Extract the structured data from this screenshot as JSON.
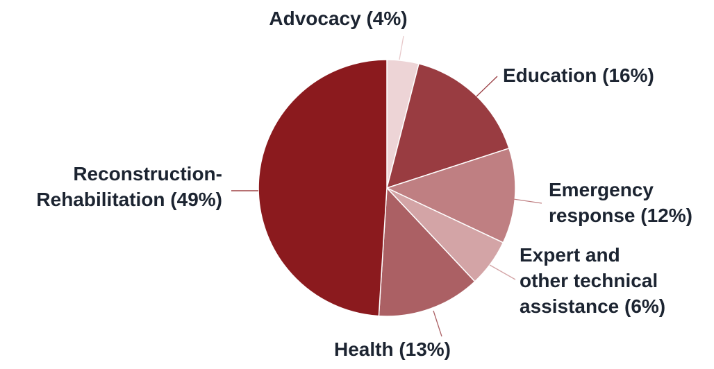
{
  "chart_data": {
    "type": "pie",
    "slices": [
      {
        "key": "advocacy",
        "value": 4,
        "color": "#edd4d6",
        "leader_color": "#e8c9cb",
        "lines": [
          "Advocacy (4%)"
        ]
      },
      {
        "key": "education",
        "value": 16,
        "color": "#993c41",
        "leader_color": "#993c41",
        "lines": [
          "Education (16%)"
        ]
      },
      {
        "key": "emergency-response",
        "value": 12,
        "color": "#bf7f82",
        "leader_color": "#bf7f82",
        "lines": [
          "Emergency",
          "response (12%)"
        ]
      },
      {
        "key": "expert-technical-assistance",
        "value": 6,
        "color": "#d3a4a6",
        "leader_color": "#d3a4a6",
        "lines": [
          "Expert and",
          "other technical",
          "assistance (6%)"
        ]
      },
      {
        "key": "health",
        "value": 13,
        "color": "#ab6064",
        "leader_color": "#ab6064",
        "lines": [
          "Health (13%)"
        ]
      },
      {
        "key": "reconstruction-rehabilitation",
        "value": 49,
        "color": "#8b1a1e",
        "leader_color": "#8b1a1e",
        "lines": [
          "Reconstruction-",
          "Rehabilitation (49%)"
        ]
      }
    ],
    "start_angle_deg": 0,
    "direction": "clockwise",
    "legend": "none"
  }
}
